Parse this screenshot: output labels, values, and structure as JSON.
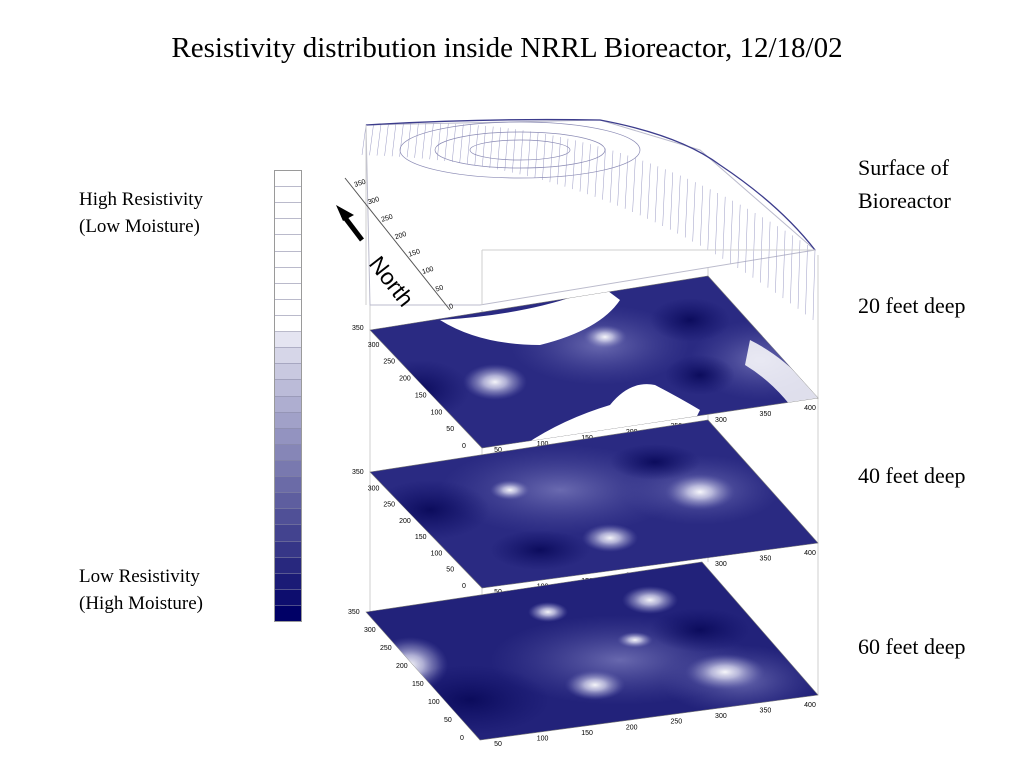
{
  "title": "Resistivity distribution inside NRRL Bioreactor, 12/18/02",
  "legend": {
    "high_line1": "High Resistivity",
    "high_line2": "(Low Moisture)",
    "low_line1": "Low Resistivity",
    "low_line2": "(High Moisture)",
    "color_top": "#ffffff",
    "color_bottom": "#000066",
    "steps": 28
  },
  "compass": {
    "label": "North"
  },
  "surface_axis_ticks": [
    "350",
    "300",
    "250",
    "200",
    "150",
    "100",
    "50",
    "0"
  ],
  "layer_y_ticks": [
    "350",
    "300",
    "250",
    "200",
    "150",
    "100",
    "50",
    "0"
  ],
  "layer_x_ticks": [
    "50",
    "100",
    "150",
    "200",
    "250",
    "300",
    "350",
    "400"
  ],
  "layers": {
    "surface": {
      "line1": "Surface of",
      "line2": "Bioreactor"
    },
    "l20": {
      "label": "20 feet deep"
    },
    "l40": {
      "label": "40 feet deep"
    },
    "l60": {
      "label": "60 feet deep"
    }
  },
  "colors": {
    "deep": "#16166e",
    "mid": "#3a3a92",
    "light": "#b8b8d8",
    "line": "#4a4aa0"
  }
}
